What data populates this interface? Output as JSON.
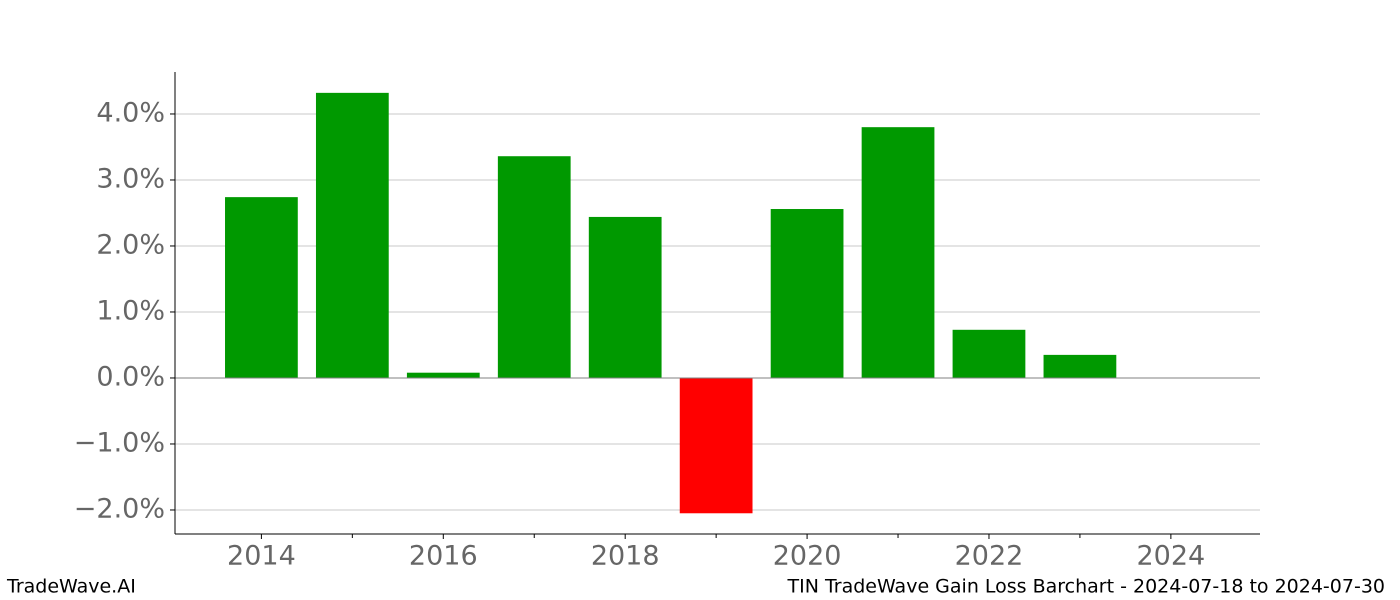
{
  "chart_data": {
    "type": "bar",
    "x": [
      2014,
      2015,
      2016,
      2017,
      2018,
      2019,
      2020,
      2021,
      2022,
      2023
    ],
    "values": [
      2.74,
      4.32,
      0.08,
      3.36,
      2.44,
      -2.05,
      2.56,
      3.8,
      0.73,
      0.35
    ],
    "colors": [
      "#009900",
      "#009900",
      "#009900",
      "#009900",
      "#009900",
      "#ff0000",
      "#009900",
      "#009900",
      "#009900",
      "#009900"
    ],
    "bar_width": 0.8,
    "xlim": [
      2013.05,
      2024.98
    ],
    "xticks": [
      2014,
      2016,
      2018,
      2020,
      2022,
      2024
    ],
    "xminorticks": [
      2015,
      2017,
      2019,
      2021,
      2023
    ],
    "ylim": [
      -2.364,
      4.636
    ],
    "yticks": [
      {
        "value": -2,
        "label": "−2.0%"
      },
      {
        "value": -1,
        "label": "−1.0%"
      },
      {
        "value": 0,
        "label": "0.0%"
      },
      {
        "value": 1,
        "label": "1.0%"
      },
      {
        "value": 2,
        "label": "2.0%"
      },
      {
        "value": 3,
        "label": "3.0%"
      },
      {
        "value": 4,
        "label": "4.0%"
      }
    ],
    "grid": true,
    "footer_left": "TradeWave.AI",
    "footer_right": "TIN TradeWave Gain Loss Barchart - 2024-07-18 to 2024-07-30"
  }
}
